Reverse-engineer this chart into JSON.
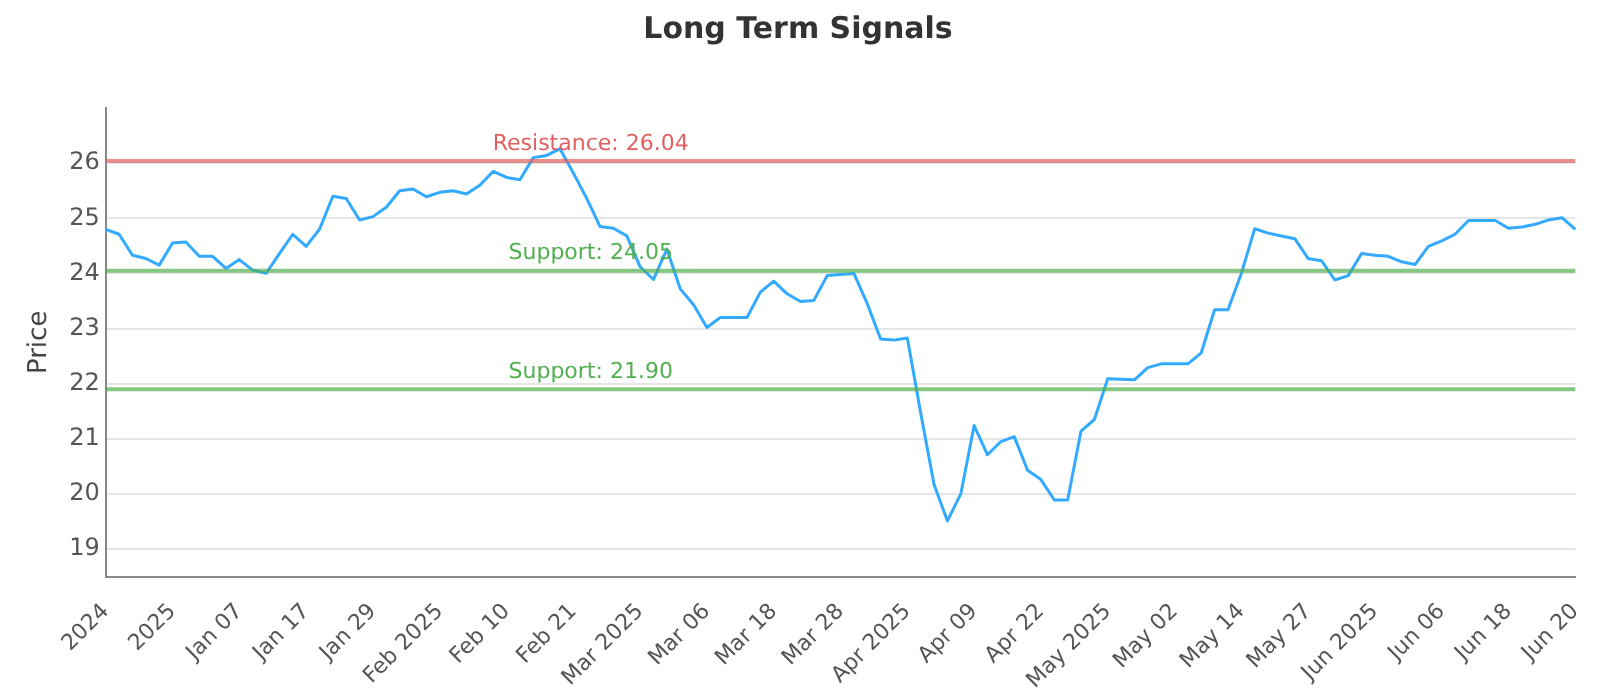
{
  "chart_data": {
    "type": "line",
    "title": "Long Term Signals",
    "ylabel": "Price",
    "categories": [
      "2024",
      null,
      null,
      null,
      null,
      "2025",
      null,
      null,
      null,
      null,
      "Jan 07",
      null,
      null,
      null,
      null,
      "Jan 17",
      null,
      null,
      null,
      null,
      "Jan 29",
      null,
      null,
      null,
      null,
      "Feb 2025",
      null,
      null,
      null,
      null,
      "Feb 10",
      null,
      null,
      null,
      null,
      "Feb 21",
      null,
      null,
      null,
      null,
      "Mar 2025",
      null,
      null,
      null,
      null,
      "Mar 06",
      null,
      null,
      null,
      null,
      "Mar 18",
      null,
      null,
      null,
      null,
      "Mar 28",
      null,
      null,
      null,
      null,
      "Apr 2025",
      null,
      null,
      null,
      null,
      "Apr 09",
      null,
      null,
      null,
      null,
      "Apr 22",
      null,
      null,
      null,
      null,
      "May 2025",
      null,
      null,
      null,
      null,
      "May 02",
      null,
      null,
      null,
      null,
      "May 14",
      null,
      null,
      null,
      null,
      "May 27",
      null,
      null,
      null,
      null,
      "Jun 2025",
      null,
      null,
      null,
      null,
      "Jun 06",
      null,
      null,
      null,
      null,
      "Jun 18",
      null,
      null,
      null,
      null,
      "Jun 20"
    ],
    "series": [
      {
        "color": "#33aaff",
        "values": [
          24.8,
          24.71,
          24.33,
          24.27,
          24.15,
          24.55,
          24.57,
          24.31,
          24.31,
          24.09,
          24.25,
          24.06,
          24.0,
          24.36,
          24.71,
          24.49,
          24.8,
          25.4,
          25.36,
          24.97,
          25.03,
          25.2,
          25.5,
          25.53,
          25.39,
          25.47,
          25.5,
          25.44,
          25.6,
          25.85,
          25.74,
          25.7,
          26.1,
          26.14,
          26.26,
          25.82,
          25.36,
          24.85,
          24.82,
          24.68,
          24.12,
          23.89,
          24.44,
          23.72,
          23.43,
          23.02,
          23.2,
          23.2,
          23.2,
          23.66,
          23.86,
          23.63,
          23.49,
          23.51,
          23.96,
          23.98,
          24.0,
          23.45,
          22.81,
          22.79,
          22.83,
          21.47,
          20.17,
          19.51,
          20.0,
          21.24,
          20.71,
          20.95,
          21.04,
          20.43,
          20.26,
          19.89,
          19.89,
          21.14,
          21.35,
          22.09,
          22.08,
          22.07,
          22.29,
          22.36,
          22.36,
          22.36,
          22.56,
          23.34,
          23.34,
          24.0,
          24.81,
          24.73,
          24.68,
          24.63,
          24.27,
          24.23,
          23.88,
          23.96,
          24.36,
          24.33,
          24.31,
          24.21,
          24.16,
          24.49,
          24.59,
          24.71,
          24.96,
          24.96,
          24.96,
          24.82,
          24.84,
          24.89,
          24.97,
          25.01,
          24.8
        ]
      }
    ],
    "ylim": [
      18.5,
      27
    ],
    "yticks": [
      19,
      20,
      21,
      22,
      23,
      24,
      25,
      26
    ],
    "ref_lines": [
      {
        "axis": "y",
        "value": 26.04,
        "label": "Resistance: 26.04",
        "color": "#e06060"
      },
      {
        "axis": "y",
        "value": 24.05,
        "label": "Support: 24.05",
        "color": "#50b050"
      },
      {
        "axis": "y",
        "value": 21.9,
        "label": "Support: 21.90",
        "color": "#50b050"
      }
    ],
    "grid": "y",
    "legend": false,
    "marker": "none",
    "line_style": "solid"
  }
}
